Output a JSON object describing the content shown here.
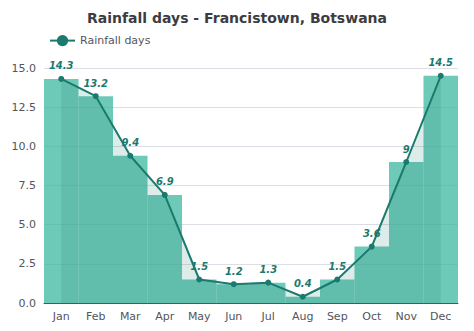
{
  "chart_data": {
    "type": "line",
    "title": "Rainfall days - Francistown, Botswana",
    "categories": [
      "Jan",
      "Feb",
      "Mar",
      "Apr",
      "May",
      "Jun",
      "Jul",
      "Aug",
      "Sep",
      "Oct",
      "Nov",
      "Dec"
    ],
    "series": [
      {
        "type": "bar",
        "color": "#3db8a0",
        "values": [
          14.3,
          13.2,
          9.4,
          6.9,
          1.5,
          1.2,
          1.3,
          0.4,
          1.5,
          3.6,
          9.0,
          14.5
        ]
      },
      {
        "name": "Rainfall days",
        "type": "line",
        "color": "#1a7a6e",
        "marker": "circle",
        "values": [
          14.3,
          13.2,
          9.4,
          6.9,
          1.5,
          1.2,
          1.3,
          0.4,
          1.5,
          3.6,
          9.0,
          14.5
        ]
      }
    ],
    "ylim": [
      0,
      15.0
    ],
    "yticks": [
      {
        "value": 0,
        "label": "0.0"
      },
      2.5,
      {
        "value": 5,
        "label": "5.0"
      },
      7.5,
      {
        "value": 10,
        "label": "10.0"
      },
      12.5,
      {
        "value": 15,
        "label": "15.0"
      }
    ],
    "grid": true,
    "legend": "upper left",
    "data_labels": true
  }
}
